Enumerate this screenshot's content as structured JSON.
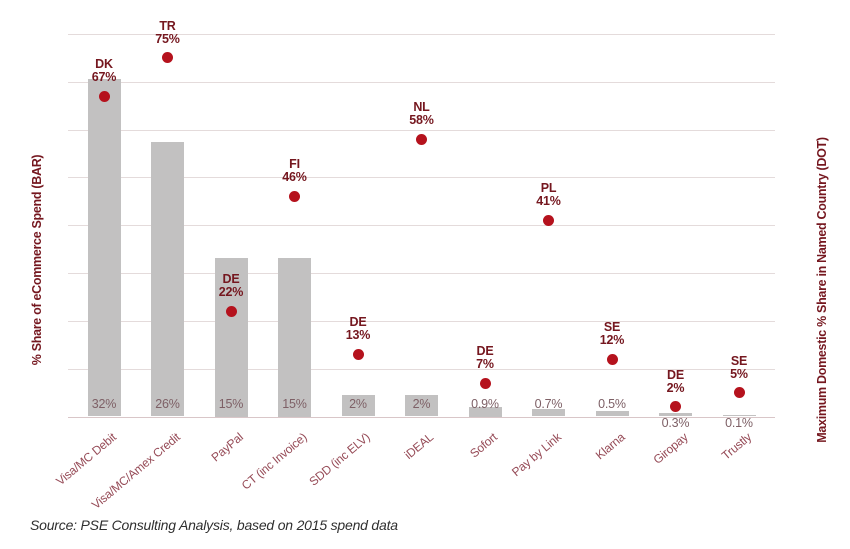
{
  "chart_data": {
    "type": "bar",
    "subtype": "dual-axis bar with scatter dots",
    "categories": [
      "Visa/MC Debit",
      "Visa/MC/Amex Credit",
      "PayPal",
      "CT (inc Invoice)",
      "SDD (inc ELV)",
      "iDEAL",
      "Sofort",
      "Pay by Link",
      "Klarna",
      "Giropay",
      "Trustly"
    ],
    "series": [
      {
        "name": "% Share of eCommerce Spend (BAR)",
        "type": "bar",
        "axis": "left",
        "values": [
          32,
          26,
          15,
          15,
          2,
          2,
          0.9,
          0.7,
          0.5,
          0.3,
          0.1
        ],
        "labels": [
          "32%",
          "26%",
          "15%",
          "15%",
          "2%",
          "2%",
          "0.9%",
          "0.7%",
          "0.5%",
          "0.3%",
          "0.1%"
        ]
      },
      {
        "name": "Maximum Domestic % Share in Named Country (DOT)",
        "type": "point",
        "axis": "right",
        "values": [
          67,
          75,
          22,
          46,
          13,
          58,
          7,
          41,
          12,
          2,
          5
        ],
        "labels": [
          [
            "DK",
            "67%"
          ],
          [
            "TR",
            "75%"
          ],
          [
            "DE",
            "22%"
          ],
          [
            "FI",
            "46%"
          ],
          [
            "DE",
            "13%"
          ],
          [
            "NL",
            "58%"
          ],
          [
            "DE",
            "7%"
          ],
          [
            "PL",
            "41%"
          ],
          [
            "SE",
            "12%"
          ],
          [
            "DE",
            "2%"
          ],
          [
            "SE",
            "5%"
          ]
        ]
      }
    ],
    "left_axis": {
      "title": "% Share of eCommerce Spend (BAR)",
      "min": 0,
      "max": 36,
      "tick_labels_visible": false
    },
    "right_axis": {
      "title": "Maximum Domestic % Share in Named Country (DOT)",
      "min": 0,
      "max": 80,
      "gridline_step": 10,
      "tick_labels_visible": false
    },
    "grid": "horizontal",
    "legend": "none",
    "title": "",
    "source_note": "Source: PSE Consulting Analysis, based on 2015 spend data",
    "colors": {
      "bar": "#c2c1c1",
      "dot": "#b5121d",
      "dot_label": "#75171f",
      "bar_label": "#7e6066",
      "category_label": "#964b57",
      "axis_title": "#75171f",
      "gridline": "#e4dbdb",
      "axis_line": "#d9c6c8",
      "source": "#2f2f2f",
      "background": "#ffffff"
    }
  }
}
